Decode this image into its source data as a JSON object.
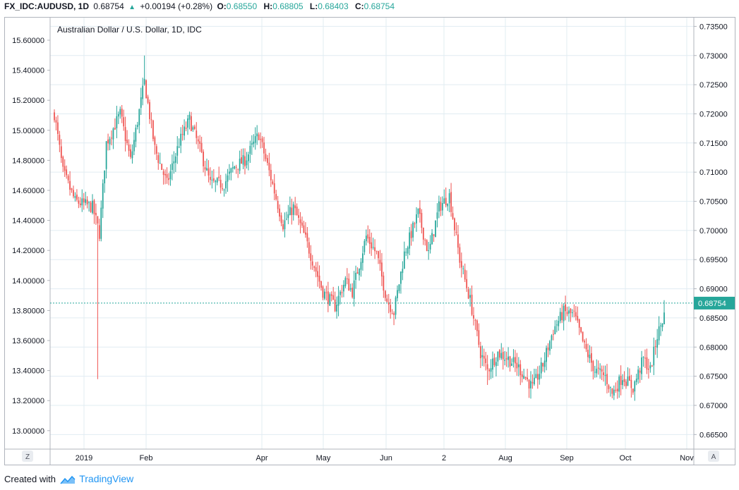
{
  "header": {
    "symbol": "FX_IDC:AUDUSD, 1D",
    "last": "0.68754",
    "change": "+0.00194 (+0.28%)",
    "open_label": "O:",
    "open": "0.68550",
    "high_label": "H:",
    "high": "0.68805",
    "low_label": "L:",
    "low": "0.68403",
    "close_label": "C:",
    "close": "0.68754"
  },
  "footer": {
    "created_with": "Created with",
    "brand": "TradingView"
  },
  "buttons": {
    "left": "Z",
    "right": "A"
  },
  "colors": {
    "up": "#26a69a",
    "down": "#ef5350",
    "grid": "#e1ecf2",
    "price_line": "#26a69a"
  },
  "chart_data": {
    "type": "candlestick",
    "title": "Australian Dollar / U.S. Dollar, 1D, IDC",
    "left_axis": {
      "ticks": [
        "15.60000",
        "15.40000",
        "15.20000",
        "15.00000",
        "14.80000",
        "14.60000",
        "14.40000",
        "14.20000",
        "14.00000",
        "13.80000",
        "13.60000",
        "13.40000",
        "13.20000",
        "13.00000"
      ]
    },
    "right_axis": {
      "ticks": [
        "0.73500",
        "0.73000",
        "0.72500",
        "0.72000",
        "0.71500",
        "0.71000",
        "0.70500",
        "0.70000",
        "0.69500",
        "0.69000",
        "0.68500",
        "0.68000",
        "0.67500",
        "0.67000",
        "0.66500"
      ],
      "range": [
        0.6625,
        0.7365
      ]
    },
    "x_axis": {
      "ticks": [
        "2019",
        "Feb",
        "Apr",
        "May",
        "Jun",
        "2",
        "Aug",
        "Sep",
        "Oct",
        "Nov"
      ]
    },
    "last_price": "0.68754",
    "path": [
      {
        "i": 0,
        "v": 0.72
      },
      {
        "i": 5,
        "v": 0.71
      },
      {
        "i": 12,
        "v": 0.705
      },
      {
        "i": 22,
        "v": 0.704
      },
      {
        "i": 26,
        "v": 0.6995
      },
      {
        "i": 30,
        "v": 0.715
      },
      {
        "i": 38,
        "v": 0.72
      },
      {
        "i": 44,
        "v": 0.712
      },
      {
        "i": 52,
        "v": 0.7255
      },
      {
        "i": 58,
        "v": 0.714
      },
      {
        "i": 65,
        "v": 0.708
      },
      {
        "i": 72,
        "v": 0.715
      },
      {
        "i": 78,
        "v": 0.719
      },
      {
        "i": 85,
        "v": 0.713
      },
      {
        "i": 90,
        "v": 0.708
      },
      {
        "i": 98,
        "v": 0.708
      },
      {
        "i": 104,
        "v": 0.711
      },
      {
        "i": 110,
        "v": 0.712
      },
      {
        "i": 118,
        "v": 0.7165
      },
      {
        "i": 125,
        "v": 0.709
      },
      {
        "i": 132,
        "v": 0.701
      },
      {
        "i": 138,
        "v": 0.704
      },
      {
        "i": 145,
        "v": 0.6985
      },
      {
        "i": 155,
        "v": 0.6895
      },
      {
        "i": 162,
        "v": 0.687
      },
      {
        "i": 168,
        "v": 0.6915
      },
      {
        "i": 172,
        "v": 0.6895
      },
      {
        "i": 180,
        "v": 0.699
      },
      {
        "i": 186,
        "v": 0.696
      },
      {
        "i": 192,
        "v": 0.688
      },
      {
        "i": 196,
        "v": 0.686
      },
      {
        "i": 202,
        "v": 0.696
      },
      {
        "i": 210,
        "v": 0.703
      },
      {
        "i": 216,
        "v": 0.696
      },
      {
        "i": 222,
        "v": 0.704
      },
      {
        "i": 228,
        "v": 0.706
      },
      {
        "i": 234,
        "v": 0.695
      },
      {
        "i": 240,
        "v": 0.688
      },
      {
        "i": 246,
        "v": 0.679
      },
      {
        "i": 250,
        "v": 0.676
      },
      {
        "i": 256,
        "v": 0.679
      },
      {
        "i": 262,
        "v": 0.678
      },
      {
        "i": 268,
        "v": 0.6765
      },
      {
        "i": 276,
        "v": 0.673
      },
      {
        "i": 282,
        "v": 0.677
      },
      {
        "i": 288,
        "v": 0.683
      },
      {
        "i": 294,
        "v": 0.686
      },
      {
        "i": 300,
        "v": 0.6855
      },
      {
        "i": 306,
        "v": 0.68
      },
      {
        "i": 312,
        "v": 0.676
      },
      {
        "i": 318,
        "v": 0.675
      },
      {
        "i": 322,
        "v": 0.672
      },
      {
        "i": 328,
        "v": 0.675
      },
      {
        "i": 334,
        "v": 0.673
      },
      {
        "i": 340,
        "v": 0.678
      },
      {
        "i": 344,
        "v": 0.676
      },
      {
        "i": 348,
        "v": 0.682
      },
      {
        "i": 352,
        "v": 0.6855
      }
    ],
    "spikes": [
      {
        "i": 25,
        "low": 0.6745
      },
      {
        "i": 52,
        "high": 0.73
      },
      {
        "i": 250,
        "low": 0.6735
      },
      {
        "i": 326,
        "low": 0.6713
      }
    ]
  }
}
